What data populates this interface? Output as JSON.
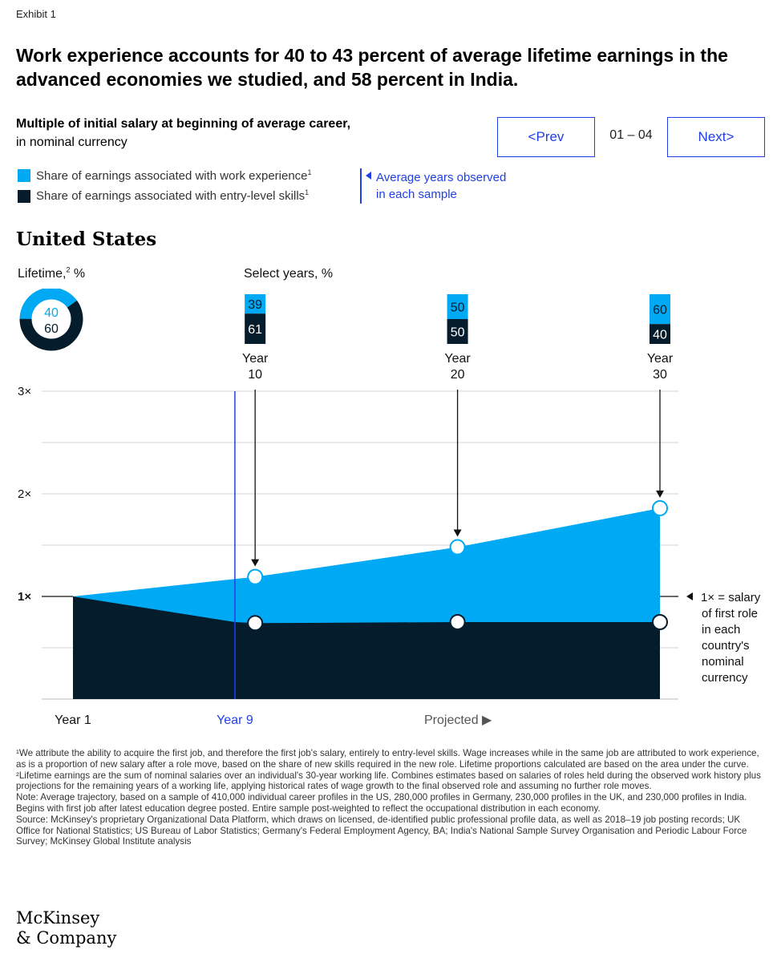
{
  "exhibit_label": "Exhibit 1",
  "headline": "Work experience accounts for 40 to 43 percent of average lifetime earnings in the advanced economies we studied, and 58 percent in India.",
  "subtitle_bold": "Multiple of initial salary at beginning of average career,",
  "subtitle_plain": "in nominal currency",
  "nav": {
    "prev_label": "<Prev",
    "next_label": "Next>",
    "page_indicator": "01 – 04"
  },
  "legend": {
    "work_experience": "Share of earnings associated with work experience",
    "work_experience_note": "1",
    "entry_level": "Share of earnings associated with entry-level skills",
    "entry_level_note": "1",
    "avg_years_line1": "Average years observed",
    "avg_years_line2": "in each sample"
  },
  "country": "United States",
  "lifetime_label": "Lifetime,",
  "lifetime_note": "2",
  "lifetime_unit": " %",
  "select_years_label": "Select years, %",
  "colors": {
    "work_experience": "#00a9f4",
    "entry_level": "#051c2c",
    "accent": "#1f40e6"
  },
  "chart_data": [
    {
      "type": "pie",
      "title": "Lifetime, %",
      "labels": [
        "Share of earnings associated with work experience",
        "Share of earnings associated with entry-level skills"
      ],
      "values": [
        40,
        60
      ]
    },
    {
      "type": "bar",
      "title": "Select years, %",
      "categories": [
        "Year 10",
        "Year 20",
        "Year 30"
      ],
      "series": [
        {
          "name": "Share of earnings associated with work experience",
          "values": [
            39,
            50,
            60
          ]
        },
        {
          "name": "Share of earnings associated with entry-level skills",
          "values": [
            61,
            50,
            40
          ]
        }
      ]
    },
    {
      "type": "area",
      "x": [
        1,
        9,
        10,
        20,
        30
      ],
      "series": [
        {
          "name": "Share of earnings associated with entry-level skills",
          "values": [
            1.0,
            0.75,
            0.74,
            0.75,
            0.75
          ]
        },
        {
          "name": "Total (entry-level skills + work experience)",
          "values": [
            1.0,
            1.17,
            1.19,
            1.48,
            1.86
          ]
        }
      ],
      "ylim": [
        0,
        3
      ],
      "y_ticks": [
        "",
        "1×",
        "2×",
        "3×"
      ],
      "grid": true,
      "x_labels": {
        "start": "Year 1",
        "observed": "Year 9",
        "projected": "Projected ▶"
      },
      "year_markers": [
        {
          "line1": "Year",
          "line2": "10"
        },
        {
          "line1": "Year",
          "line2": "20"
        },
        {
          "line1": "Year",
          "line2": "30"
        }
      ],
      "annotation": "1× = salary of first role in each country's nominal currency",
      "annotation_lines": [
        "1× = salary",
        "of first role",
        "in each",
        "country's",
        "nominal",
        "currency"
      ]
    }
  ],
  "footnotes": [
    "¹We attribute the ability to acquire the first job, and therefore the first job's salary, entirely to entry-level skills. Wage increases while in the same job are attributed to work experience, as is a proportion of new salary after a role move, based on the share of new skills required in the new role. Lifetime proportions calculated are based on the area under the curve. ²Lifetime earnings are the sum of nominal salaries over an individual's 30-year working life. Combines estimates based on salaries of roles held during the observed work history plus projections for the remaining years of a working life, applying historical rates of wage growth to the final observed role and assuming no further role moves.",
    "Note: Average trajectory, based on a sample of 410,000 individual career profiles in the US, 280,000 profiles in Germany, 230,000 profiles in the UK, and 230,000 profiles in India. Begins with first job after latest education degree posted. Entire sample post-weighted to reflect the occupational distribution in each economy.",
    "Source: McKinsey's proprietary Organizational Data Platform, which draws on licensed, de-identified public professional profile data, as well as 2018–19 job posting records; UK Office for National Statistics; US Bureau of Labor Statistics; Germany's Federal Employment Agency, BA; India's National Sample Survey Organisation and Periodic Labour Force Survey; McKinsey Global Institute analysis"
  ],
  "logo_line1": "McKinsey",
  "logo_line2": "& Company"
}
